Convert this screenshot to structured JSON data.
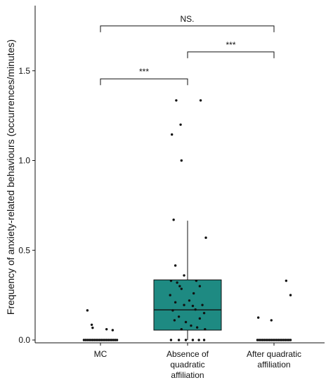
{
  "chart_data": {
    "type": "box",
    "ylabel": "Frequency of anxiety-related behaviours (occurrences/minutes)",
    "ylim": [
      0,
      1.85
    ],
    "yticks": [
      0.0,
      0.5,
      1.0,
      1.5
    ],
    "ytick_labels": [
      "0.0",
      "0.5",
      "1.0",
      "1.5"
    ],
    "categories": [
      {
        "lines": [
          "MC"
        ]
      },
      {
        "lines": [
          "Absence of",
          "quadratic",
          "affiliation"
        ]
      },
      {
        "lines": [
          "After quadratic",
          "affiliation"
        ]
      }
    ],
    "box_color": "#1e8a82",
    "boxes": [
      null,
      {
        "q1": 0.055,
        "median": 0.168,
        "q3": 0.335,
        "whisker_low": 0.0,
        "whisker_high": 0.665
      },
      null
    ],
    "points": [
      [
        {
          "dx": -0.15,
          "y": 0.165
        },
        {
          "dx": -0.1,
          "y": 0.085
        },
        {
          "dx": -0.09,
          "y": 0.068
        },
        {
          "dx": 0.07,
          "y": 0.06
        },
        {
          "dx": 0.14,
          "y": 0.055
        },
        {
          "dx": -0.19,
          "y": 0.0
        },
        {
          "dx": -0.17,
          "y": 0.0
        },
        {
          "dx": -0.15,
          "y": 0.0
        },
        {
          "dx": -0.13,
          "y": 0.0
        },
        {
          "dx": -0.11,
          "y": 0.0
        },
        {
          "dx": -0.09,
          "y": 0.0
        },
        {
          "dx": -0.07,
          "y": 0.0
        },
        {
          "dx": -0.05,
          "y": 0.0
        },
        {
          "dx": -0.03,
          "y": 0.0
        },
        {
          "dx": -0.01,
          "y": 0.0
        },
        {
          "dx": 0.01,
          "y": 0.0
        },
        {
          "dx": 0.03,
          "y": 0.0
        },
        {
          "dx": 0.05,
          "y": 0.0
        },
        {
          "dx": 0.07,
          "y": 0.0
        },
        {
          "dx": 0.09,
          "y": 0.0
        },
        {
          "dx": 0.11,
          "y": 0.0
        },
        {
          "dx": 0.13,
          "y": 0.0
        },
        {
          "dx": 0.15,
          "y": 0.0
        },
        {
          "dx": 0.17,
          "y": 0.0
        },
        {
          "dx": 0.19,
          "y": 0.0
        }
      ],
      [
        {
          "dx": -0.13,
          "y": 1.335
        },
        {
          "dx": 0.15,
          "y": 1.335
        },
        {
          "dx": -0.08,
          "y": 1.2
        },
        {
          "dx": -0.18,
          "y": 1.145
        },
        {
          "dx": -0.07,
          "y": 1.0
        },
        {
          "dx": -0.16,
          "y": 0.67
        },
        {
          "dx": 0.21,
          "y": 0.57
        },
        {
          "dx": -0.14,
          "y": 0.415
        },
        {
          "dx": -0.04,
          "y": 0.36
        },
        {
          "dx": -0.19,
          "y": 0.33
        },
        {
          "dx": -0.12,
          "y": 0.32
        },
        {
          "dx": 0.1,
          "y": 0.33
        },
        {
          "dx": -0.09,
          "y": 0.3
        },
        {
          "dx": -0.07,
          "y": 0.285
        },
        {
          "dx": 0.14,
          "y": 0.3
        },
        {
          "dx": -0.2,
          "y": 0.25
        },
        {
          "dx": 0.07,
          "y": 0.26
        },
        {
          "dx": 0.02,
          "y": 0.22
        },
        {
          "dx": -0.14,
          "y": 0.21
        },
        {
          "dx": -0.04,
          "y": 0.195
        },
        {
          "dx": 0.06,
          "y": 0.19
        },
        {
          "dx": 0.17,
          "y": 0.195
        },
        {
          "dx": -0.17,
          "y": 0.165
        },
        {
          "dx": 0.09,
          "y": 0.17
        },
        {
          "dx": 0.19,
          "y": 0.15
        },
        {
          "dx": -0.1,
          "y": 0.13
        },
        {
          "dx": 0.14,
          "y": 0.12
        },
        {
          "dx": -0.15,
          "y": 0.11
        },
        {
          "dx": -0.02,
          "y": 0.1
        },
        {
          "dx": 0.04,
          "y": 0.08
        },
        {
          "dx": 0.11,
          "y": 0.07
        },
        {
          "dx": -0.07,
          "y": 0.06
        },
        {
          "dx": 0.2,
          "y": 0.06
        },
        {
          "dx": -0.19,
          "y": 0.0
        },
        {
          "dx": -0.1,
          "y": 0.0
        },
        {
          "dx": -0.02,
          "y": 0.0
        },
        {
          "dx": 0.06,
          "y": 0.0
        },
        {
          "dx": 0.13,
          "y": 0.0
        },
        {
          "dx": 0.19,
          "y": 0.0
        }
      ],
      [
        {
          "dx": -0.18,
          "y": 0.125
        },
        {
          "dx": -0.03,
          "y": 0.11
        },
        {
          "dx": 0.14,
          "y": 0.33
        },
        {
          "dx": 0.19,
          "y": 0.25
        },
        {
          "dx": -0.19,
          "y": 0.0
        },
        {
          "dx": -0.17,
          "y": 0.0
        },
        {
          "dx": -0.15,
          "y": 0.0
        },
        {
          "dx": -0.13,
          "y": 0.0
        },
        {
          "dx": -0.11,
          "y": 0.0
        },
        {
          "dx": -0.09,
          "y": 0.0
        },
        {
          "dx": -0.07,
          "y": 0.0
        },
        {
          "dx": -0.05,
          "y": 0.0
        },
        {
          "dx": -0.03,
          "y": 0.0
        },
        {
          "dx": -0.01,
          "y": 0.0
        },
        {
          "dx": 0.01,
          "y": 0.0
        },
        {
          "dx": 0.03,
          "y": 0.0
        },
        {
          "dx": 0.05,
          "y": 0.0
        },
        {
          "dx": 0.07,
          "y": 0.0
        },
        {
          "dx": 0.09,
          "y": 0.0
        },
        {
          "dx": 0.11,
          "y": 0.0
        },
        {
          "dx": 0.13,
          "y": 0.0
        },
        {
          "dx": 0.15,
          "y": 0.0
        },
        {
          "dx": 0.17,
          "y": 0.0
        },
        {
          "dx": 0.19,
          "y": 0.0
        }
      ]
    ],
    "significance": [
      {
        "from": 0,
        "to": 2,
        "y": 1.75,
        "label": "NS."
      },
      {
        "from": 1,
        "to": 2,
        "y": 1.605,
        "label": "***"
      },
      {
        "from": 0,
        "to": 1,
        "y": 1.455,
        "label": "***"
      }
    ]
  }
}
